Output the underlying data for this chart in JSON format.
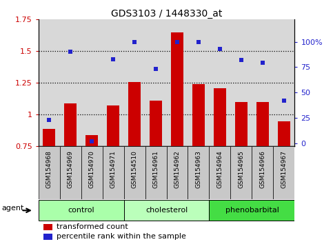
{
  "title": "GDS3103 / 1448330_at",
  "samples": [
    "GSM154968",
    "GSM154969",
    "GSM154970",
    "GSM154971",
    "GSM154510",
    "GSM154961",
    "GSM154962",
    "GSM154963",
    "GSM154964",
    "GSM154965",
    "GSM154966",
    "GSM154967"
  ],
  "bar_values": [
    0.89,
    1.09,
    0.84,
    1.07,
    1.26,
    1.11,
    1.65,
    1.24,
    1.21,
    1.1,
    1.1,
    0.95
  ],
  "dot_values_pct": [
    23,
    90,
    2,
    83,
    100,
    73,
    100,
    100,
    93,
    82,
    79,
    42
  ],
  "bar_color": "#cc0000",
  "dot_color": "#2222cc",
  "ylim_left": [
    0.75,
    1.75
  ],
  "ylim_right": [
    -3.125,
    121.875
  ],
  "yticks_left": [
    0.75,
    1.0,
    1.25,
    1.5,
    1.75
  ],
  "yticks_right": [
    0,
    25,
    50,
    75,
    100
  ],
  "ytick_labels_left": [
    "0.75",
    "1",
    "1.25",
    "1.5",
    "1.75"
  ],
  "ytick_labels_right": [
    "0",
    "25",
    "50",
    "75",
    "100%"
  ],
  "hlines": [
    1.0,
    1.25,
    1.5
  ],
  "groups": [
    {
      "label": "control",
      "start": 0,
      "end": 4,
      "color": "#aaffaa"
    },
    {
      "label": "cholesterol",
      "start": 4,
      "end": 8,
      "color": "#bbffbb"
    },
    {
      "label": "phenobarbital",
      "start": 8,
      "end": 12,
      "color": "#44dd44"
    }
  ],
  "agent_label": "agent",
  "legend_items": [
    {
      "label": "transformed count",
      "color": "#cc0000"
    },
    {
      "label": "percentile rank within the sample",
      "color": "#2222cc"
    }
  ],
  "plot_bg_color": "#d8d8d8",
  "xtick_bg_color": "#c8c8c8",
  "bar_width": 0.6,
  "bar_bottom": 0.75
}
